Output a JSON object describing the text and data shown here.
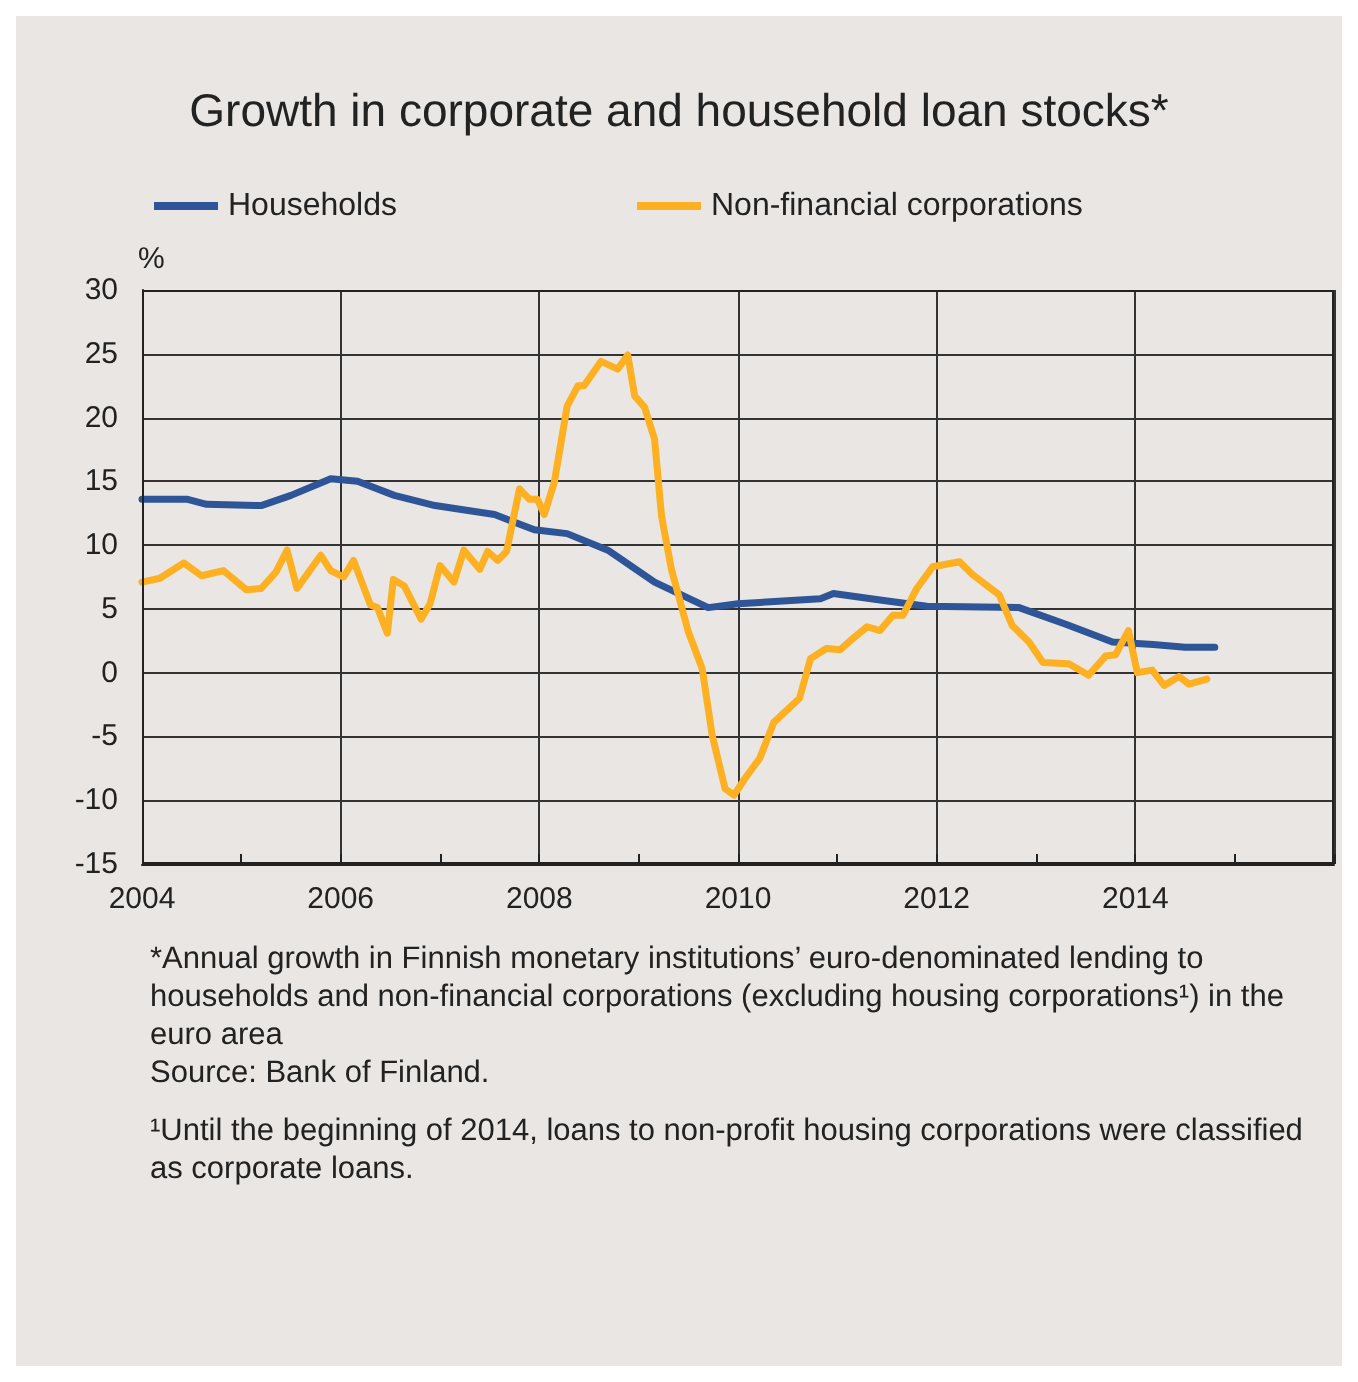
{
  "chart_data": {
    "type": "line",
    "title": "Growth in corporate and household loan stocks*",
    "ylabel": "%",
    "annotations": [
      "*Annual growth in Finnish monetary institutions’ euro-denominated lending to households and non-financial corporations (excluding housing corporations¹) in the euro area",
      "Source: Bank of Finland.",
      "¹Until the beginning of 2014, loans to non-profit housing corporations were classified as corporate loans."
    ],
    "xlim": [
      2004,
      2016
    ],
    "xticks": [
      {
        "value": 2004,
        "label": "2004"
      },
      {
        "value": 2005,
        "label": null
      },
      {
        "value": 2006,
        "label": "2006"
      },
      {
        "value": 2007,
        "label": null
      },
      {
        "value": 2008,
        "label": "2008"
      },
      {
        "value": 2009,
        "label": null
      },
      {
        "value": 2010,
        "label": "2010"
      },
      {
        "value": 2011,
        "label": null
      },
      {
        "value": 2012,
        "label": "2012"
      },
      {
        "value": 2013,
        "label": null
      },
      {
        "value": 2014,
        "label": "2014"
      },
      {
        "value": 2015,
        "label": null
      },
      {
        "value": 2016,
        "label": null
      }
    ],
    "ylim": [
      -15,
      30
    ],
    "yticks": [
      -15,
      -10,
      -5,
      0,
      5,
      10,
      15,
      20,
      25,
      30
    ],
    "grid": true,
    "legend": "top left",
    "marker": "none",
    "line_style": "solid",
    "series": [
      {
        "name": "Households",
        "color": "#2e5597",
        "x": [
          2004.0,
          2004.45,
          2004.65,
          2005.2,
          2005.5,
          2005.9,
          2006.17,
          2006.54,
          2006.95,
          2007.55,
          2007.95,
          2008.28,
          2008.69,
          2009.16,
          2009.7,
          2010.0,
          2010.83,
          2010.96,
          2011.43,
          2011.9,
          2012.83,
          2013.3,
          2013.77,
          2014.18,
          2014.5,
          2014.8
        ],
        "values": [
          13.6,
          13.6,
          13.2,
          13.1,
          13.9,
          15.2,
          15.0,
          13.9,
          13.1,
          12.4,
          11.2,
          10.9,
          9.6,
          7.1,
          5.1,
          5.4,
          5.8,
          6.2,
          5.7,
          5.2,
          5.1,
          3.8,
          2.4,
          2.2,
          2.0,
          2.0
        ]
      },
      {
        "name": "Non-financial corporations",
        "color": "#fdb022",
        "x": [
          2004.0,
          2004.18,
          2004.42,
          2004.6,
          2004.82,
          2005.05,
          2005.2,
          2005.35,
          2005.46,
          2005.56,
          2005.8,
          2005.9,
          2006.03,
          2006.13,
          2006.3,
          2006.37,
          2006.47,
          2006.53,
          2006.64,
          2006.81,
          2006.9,
          2007.0,
          2007.14,
          2007.24,
          2007.4,
          2007.48,
          2007.58,
          2007.67,
          2007.8,
          2007.9,
          2007.98,
          2008.05,
          2008.15,
          2008.28,
          2008.39,
          2008.45,
          2008.62,
          2008.79,
          2008.89,
          2008.96,
          2009.06,
          2009.16,
          2009.23,
          2009.33,
          2009.5,
          2009.64,
          2009.74,
          2009.87,
          2009.96,
          2010.07,
          2010.22,
          2010.36,
          2010.62,
          2010.73,
          2010.89,
          2011.03,
          2011.16,
          2011.3,
          2011.43,
          2011.56,
          2011.66,
          2011.8,
          2011.96,
          2012.23,
          2012.36,
          2012.63,
          2012.76,
          2012.93,
          2013.07,
          2013.33,
          2013.53,
          2013.7,
          2013.8,
          2013.93,
          2014.02,
          2014.17,
          2014.29,
          2014.44,
          2014.54,
          2014.72
        ],
        "values": [
          7.1,
          7.4,
          8.6,
          7.6,
          8.0,
          6.5,
          6.6,
          7.9,
          9.6,
          6.6,
          9.2,
          8.0,
          7.5,
          8.8,
          5.3,
          5.1,
          3.1,
          7.3,
          6.8,
          4.2,
          5.4,
          8.4,
          7.1,
          9.6,
          8.1,
          9.5,
          8.8,
          9.5,
          14.4,
          13.6,
          13.6,
          12.4,
          14.9,
          20.9,
          22.5,
          22.5,
          24.4,
          23.8,
          24.9,
          21.7,
          20.8,
          18.3,
          12.3,
          8.1,
          3.2,
          0.3,
          -4.9,
          -9.1,
          -9.6,
          -8.3,
          -6.7,
          -3.9,
          -2.0,
          1.1,
          1.9,
          1.8,
          2.7,
          3.6,
          3.3,
          4.5,
          4.5,
          6.6,
          8.3,
          8.7,
          7.7,
          6.1,
          3.7,
          2.4,
          0.8,
          0.7,
          -0.2,
          1.3,
          1.4,
          3.3,
          0.0,
          0.2,
          -1.0,
          -0.3,
          -0.9,
          -0.5
        ]
      }
    ]
  }
}
